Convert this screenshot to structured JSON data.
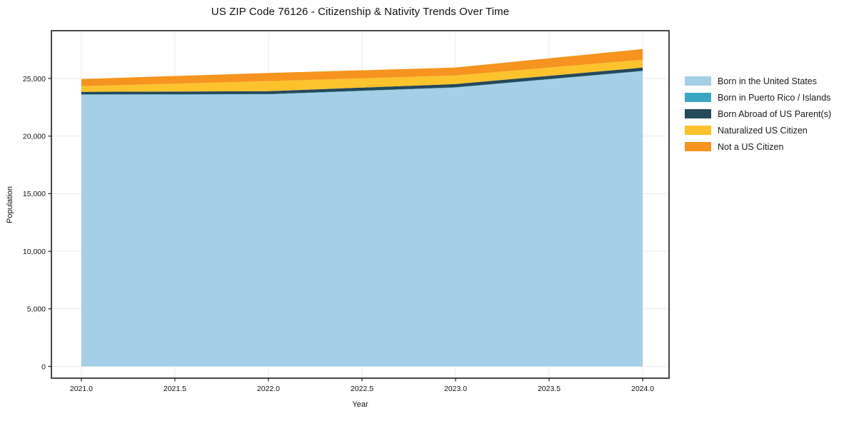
{
  "title": "US ZIP Code 76126 - Citizenship & Nativity Trends Over Time",
  "chart_data": {
    "type": "area",
    "stacked": true,
    "title": "US ZIP Code 76126 - Citizenship & Nativity Trends Over Time",
    "xlabel": "Year",
    "ylabel": "Population",
    "x": [
      2021,
      2022,
      2023,
      2024
    ],
    "series": [
      {
        "name": "Born in the United States",
        "color": "#a5cfe6",
        "values": [
          23590,
          23620,
          24210,
          25640
        ]
      },
      {
        "name": "Born in Puerto Rico / Islands",
        "color": "#3ba6c1",
        "values": [
          30,
          30,
          30,
          30
        ]
      },
      {
        "name": "Born Abroad of US Parent(s)",
        "color": "#25485a",
        "values": [
          220,
          250,
          280,
          280
        ]
      },
      {
        "name": "Naturalized US Citizen",
        "color": "#fcc32d",
        "values": [
          495,
          870,
          745,
          680
        ]
      },
      {
        "name": "Not a US Citizen",
        "color": "#f6941f",
        "values": [
          620,
          710,
          685,
          930
        ]
      }
    ],
    "x_ticks": [
      2021.0,
      2021.5,
      2022.0,
      2022.5,
      2023.0,
      2023.5,
      2024.0
    ],
    "x_tick_labels": [
      "2021.0",
      "2021.5",
      "2022.0",
      "2022.5",
      "2023.0",
      "2023.5",
      "2024.0"
    ],
    "y_ticks": [
      0,
      5000,
      10000,
      15000,
      20000,
      25000
    ],
    "y_tick_labels": [
      "0",
      "5,000",
      "10,000",
      "15,000",
      "20,000",
      "25,000"
    ],
    "xlim": [
      2020.84,
      2024.141
    ],
    "ylim": [
      -1022,
      29152
    ],
    "grid": true,
    "grid_color": "#ececec",
    "spine_color": "#1c1c1c",
    "legend_position": "right"
  }
}
